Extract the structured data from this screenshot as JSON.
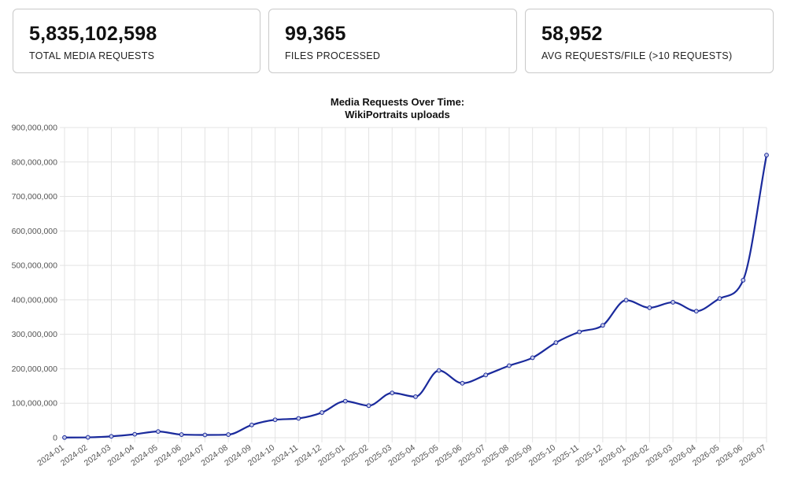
{
  "stats": [
    {
      "value": "5,835,102,598",
      "label": "TOTAL MEDIA REQUESTS"
    },
    {
      "value": "99,365",
      "label": "FILES PROCESSED"
    },
    {
      "value": "58,952",
      "label": "AVG REQUESTS/FILE (>10 REQUESTS)"
    }
  ],
  "colors": {
    "line": "#1a2a9c",
    "point_fill": "#c7cbe9",
    "grid": "#e3e3e3"
  },
  "chart_data": {
    "type": "line",
    "title": [
      "Media Requests Over Time:",
      "WikiPortraits uploads"
    ],
    "xlabel": "",
    "ylabel": "",
    "ylim": [
      0,
      900000000
    ],
    "y_ticks": [
      0,
      100000000,
      200000000,
      300000000,
      400000000,
      500000000,
      600000000,
      700000000,
      800000000,
      900000000
    ],
    "y_tick_labels": [
      "0",
      "100,000,000",
      "200,000,000",
      "300,000,000",
      "400,000,000",
      "500,000,000",
      "600,000,000",
      "700,000,000",
      "800,000,000",
      "900,000,000"
    ],
    "grid": true,
    "legend": "none",
    "categories": [
      "2024-01",
      "2024-02",
      "2024-03",
      "2024-04",
      "2024-05",
      "2024-06",
      "2024-07",
      "2024-08",
      "2024-09",
      "2024-10",
      "2024-11",
      "2024-12",
      "2025-01",
      "2025-02",
      "2025-03",
      "2025-04",
      "2025-05",
      "2025-06",
      "2025-07",
      "2025-08",
      "2025-09",
      "2025-10",
      "2025-11",
      "2025-12",
      "2026-01",
      "2026-02",
      "2026-03",
      "2026-04",
      "2026-05",
      "2026-06",
      "2026-07"
    ],
    "series": [
      {
        "values": [
          500000,
          1000000,
          4000000,
          10000000,
          18000000,
          9000000,
          8000000,
          9000000,
          37000000,
          52000000,
          56000000,
          73000000,
          106000000,
          93000000,
          130000000,
          119000000,
          195000000,
          158000000,
          182000000,
          209000000,
          232000000,
          276000000,
          307000000,
          326000000,
          399000000,
          377000000,
          393000000,
          367000000,
          404000000,
          457000000,
          820000000
        ]
      }
    ]
  }
}
